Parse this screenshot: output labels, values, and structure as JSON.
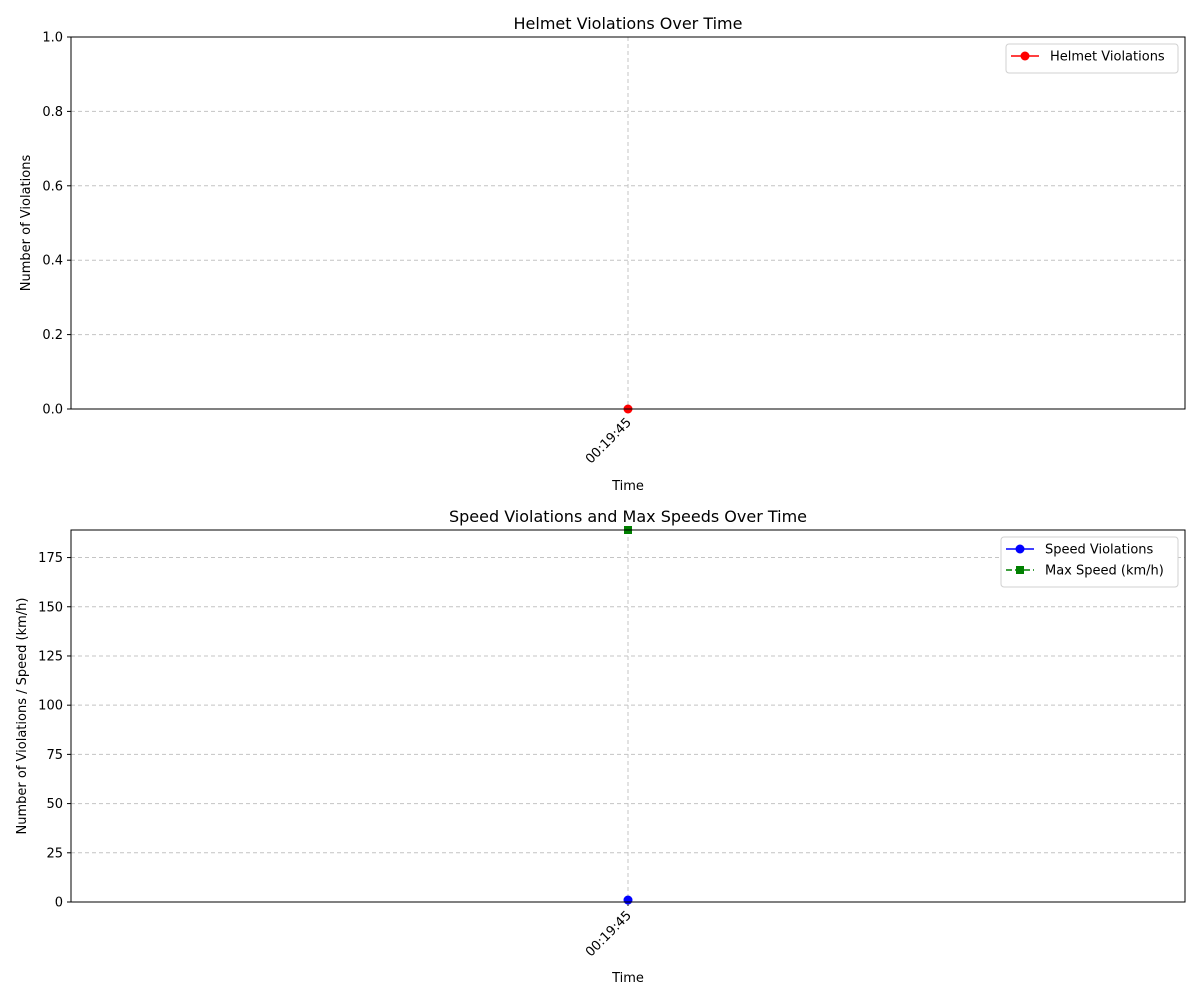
{
  "chart_data": [
    {
      "type": "line",
      "title": "Helmet Violations Over Time",
      "xlabel": "Time",
      "ylabel": "Number of Violations",
      "x": [
        "00:19:45"
      ],
      "ylim": [
        0,
        1
      ],
      "yticks": [
        0.0,
        0.2,
        0.4,
        0.6,
        0.8,
        1.0
      ],
      "ytick_labels": [
        "0.0",
        "0.2",
        "0.4",
        "0.6",
        "0.8",
        "1.0"
      ],
      "grid": true,
      "legend_position": "top-right",
      "series": [
        {
          "name": "Helmet Violations",
          "values": [
            0
          ],
          "color": "#ff0000",
          "marker": "circle",
          "linestyle": "solid"
        }
      ]
    },
    {
      "type": "line",
      "title": "Speed Violations and Max Speeds Over Time",
      "xlabel": "Time",
      "ylabel": "Number of Violations / Speed (km/h)",
      "x": [
        "00:19:45"
      ],
      "ylim": [
        0,
        189
      ],
      "yticks": [
        0,
        25,
        50,
        75,
        100,
        125,
        150,
        175
      ],
      "ytick_labels": [
        "0",
        "25",
        "50",
        "75",
        "100",
        "125",
        "150",
        "175"
      ],
      "grid": true,
      "legend_position": "top-right",
      "series": [
        {
          "name": "Speed Violations",
          "values": [
            1
          ],
          "color": "#0000ff",
          "marker": "circle",
          "linestyle": "solid"
        },
        {
          "name": "Max Speed (km/h)",
          "values": [
            189
          ],
          "color": "#008000",
          "marker": "square",
          "linestyle": "dashed"
        }
      ]
    }
  ]
}
